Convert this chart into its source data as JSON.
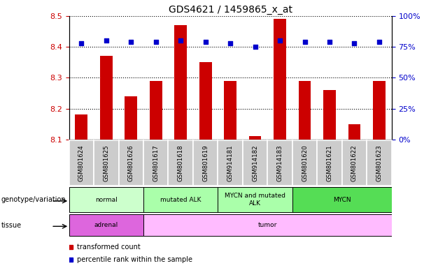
{
  "title": "GDS4621 / 1459865_x_at",
  "samples": [
    "GSM801624",
    "GSM801625",
    "GSM801626",
    "GSM801617",
    "GSM801618",
    "GSM801619",
    "GSM914181",
    "GSM914182",
    "GSM914183",
    "GSM801620",
    "GSM801621",
    "GSM801622",
    "GSM801623"
  ],
  "transformed_count": [
    8.18,
    8.37,
    8.24,
    8.29,
    8.47,
    8.35,
    8.29,
    8.11,
    8.49,
    8.29,
    8.26,
    8.15,
    8.29
  ],
  "percentile_rank": [
    78,
    80,
    79,
    79,
    80,
    79,
    78,
    75,
    80,
    79,
    79,
    78,
    79
  ],
  "ylim_left": [
    8.1,
    8.5
  ],
  "ylim_right": [
    0,
    100
  ],
  "yticks_left": [
    8.1,
    8.2,
    8.3,
    8.4,
    8.5
  ],
  "yticks_right": [
    0,
    25,
    50,
    75,
    100
  ],
  "bar_color": "#cc0000",
  "dot_color": "#0000cc",
  "genotype_groups": [
    {
      "label": "normal",
      "start": 0,
      "end": 3,
      "color": "#ccffcc"
    },
    {
      "label": "mutated ALK",
      "start": 3,
      "end": 6,
      "color": "#aaffaa"
    },
    {
      "label": "MYCN and mutated\nALK",
      "start": 6,
      "end": 9,
      "color": "#aaffaa"
    },
    {
      "label": "MYCN",
      "start": 9,
      "end": 13,
      "color": "#55dd55"
    }
  ],
  "tissue_groups": [
    {
      "label": "adrenal",
      "start": 0,
      "end": 3,
      "color": "#dd66dd"
    },
    {
      "label": "tumor",
      "start": 3,
      "end": 13,
      "color": "#ffbbff"
    }
  ],
  "bar_width": 0.5,
  "ylabel_left_color": "#cc0000",
  "ylabel_right_color": "#0000cc",
  "label_box_color": "#cccccc",
  "fig_bg": "#ffffff"
}
